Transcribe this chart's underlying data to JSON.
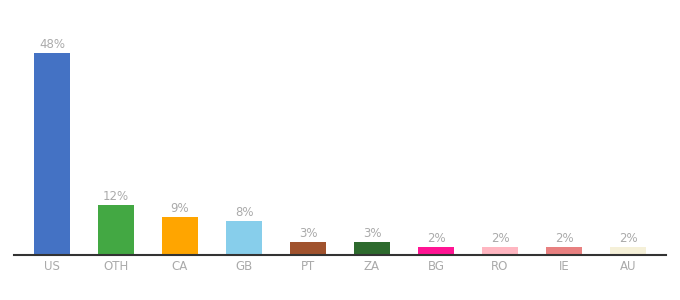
{
  "categories": [
    "US",
    "OTH",
    "CA",
    "GB",
    "PT",
    "ZA",
    "BG",
    "RO",
    "IE",
    "AU"
  ],
  "values": [
    48,
    12,
    9,
    8,
    3,
    3,
    2,
    2,
    2,
    2
  ],
  "bar_colors": [
    "#4472c4",
    "#43a843",
    "#ffa500",
    "#87ceeb",
    "#a0522d",
    "#2d6a2d",
    "#ff1493",
    "#ffb6c1",
    "#e88080",
    "#f5f0d8"
  ],
  "label_color": "#aaaaaa",
  "axis_label_color": "#aaaaaa",
  "background_color": "#ffffff",
  "ylim": [
    0,
    55
  ],
  "bar_width": 0.55,
  "label_fontsize": 8.5,
  "tick_fontsize": 8.5,
  "bottom_spine_color": "#333333"
}
